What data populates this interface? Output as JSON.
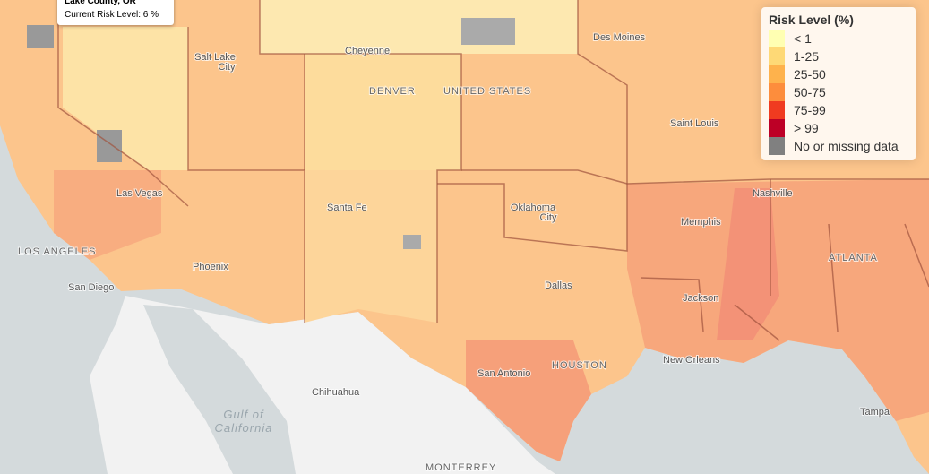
{
  "tooltip": {
    "title": "Lake County, OR",
    "text": "Current Risk Level: 6 %"
  },
  "legend": {
    "title": "Risk Level (%)",
    "items": [
      {
        "label": "< 1",
        "color": "#ffffb2"
      },
      {
        "label": "1-25",
        "color": "#fed976"
      },
      {
        "label": "25-50",
        "color": "#feb24c"
      },
      {
        "label": "50-75",
        "color": "#fd8d3c"
      },
      {
        "label": "75-99",
        "color": "#f03b20"
      },
      {
        "label": "> 99",
        "color": "#bd0026"
      },
      {
        "label": "No or missing data",
        "color": "#808080"
      }
    ]
  },
  "places": [
    {
      "label": "Cheyenne"
    },
    {
      "lines": [
        "Salt Lake",
        "City"
      ]
    },
    {
      "label": "DENVER"
    },
    {
      "label": "UNITED STATES"
    },
    {
      "label": "Des Moines"
    },
    {
      "label": "Saint Louis"
    },
    {
      "label": "Nashville"
    },
    {
      "label": "Las Vegas"
    },
    {
      "label": "Santa Fe"
    },
    {
      "lines": [
        "Oklahoma",
        "City"
      ]
    },
    {
      "label": "Memphis"
    },
    {
      "label": "LOS ANGELES"
    },
    {
      "label": "Phoenix"
    },
    {
      "label": "ATLANTA"
    },
    {
      "label": "San Diego"
    },
    {
      "label": "Dallas"
    },
    {
      "label": "Jackson"
    },
    {
      "label": "New Orleans"
    },
    {
      "label": "HOUSTON"
    },
    {
      "label": "San Antonio"
    },
    {
      "label": "Chihuahua"
    },
    {
      "lines": [
        "Gulf of",
        "California"
      ]
    },
    {
      "label": "MONTERREY"
    },
    {
      "label": "Tampa"
    }
  ]
}
